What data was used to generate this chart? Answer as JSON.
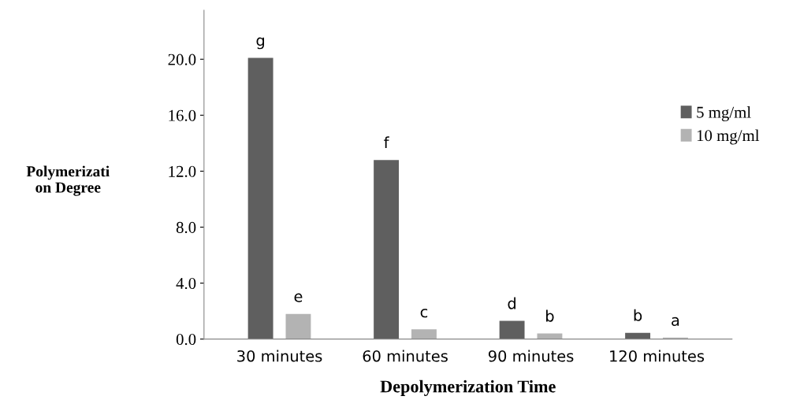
{
  "chart_data": {
    "type": "bar",
    "xlabel": "Depolymerization Time",
    "ylabel": "Polymerizati\non Degree",
    "categories": [
      "30 minutes",
      "60 minutes",
      "90 minutes",
      "120 minutes"
    ],
    "series": [
      {
        "name": "5 mg/ml",
        "color": "#5f5f5f",
        "values": [
          20.1,
          12.8,
          1.3,
          0.45
        ],
        "value_labels": [
          "g",
          "f",
          "d",
          "b"
        ]
      },
      {
        "name": "10 mg/ml",
        "color": "#b3b3b3",
        "values": [
          1.8,
          0.7,
          0.4,
          0.1
        ],
        "value_labels": [
          "e",
          "c",
          "b",
          "a"
        ]
      }
    ],
    "ylim": [
      0,
      23.5
    ],
    "yticks": [
      {
        "value": 0,
        "label": "0.0"
      },
      {
        "value": 4,
        "label": "4.0"
      },
      {
        "value": 8,
        "label": "8.0"
      },
      {
        "value": 12,
        "label": "12.0"
      },
      {
        "value": 16,
        "label": "16.0"
      },
      {
        "value": 20,
        "label": "20.0"
      }
    ],
    "legend": "right",
    "grid": false
  }
}
